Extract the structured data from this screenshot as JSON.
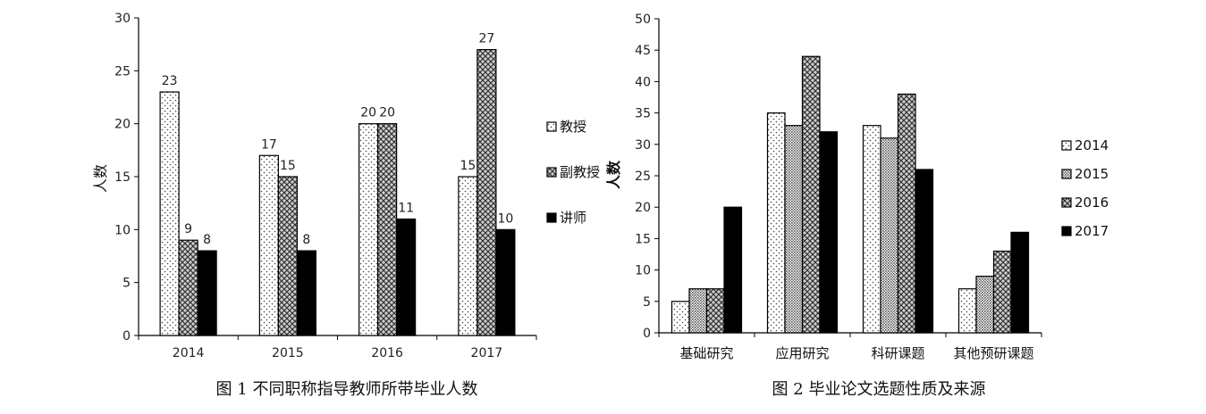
{
  "chart_data": [
    {
      "type": "bar",
      "caption": "图 1  不同职称指导教师所带毕业人数",
      "ylabel": "人数",
      "xlabel": "",
      "ylim": [
        0,
        30
      ],
      "yticks": [
        "0",
        "5",
        "10",
        "15",
        "20",
        "25",
        "30"
      ],
      "categories": [
        "2014",
        "2015",
        "2016",
        "2017"
      ],
      "series": [
        {
          "name": "教授",
          "values": [
            23,
            17,
            20,
            15
          ]
        },
        {
          "name": "副教授",
          "values": [
            9,
            15,
            20,
            27
          ]
        },
        {
          "name": "讲师",
          "values": [
            8,
            8,
            11,
            10
          ]
        }
      ],
      "data_labels": true,
      "legend_position": "right"
    },
    {
      "type": "bar",
      "caption": "图 2  毕业论文选题性质及来源",
      "ylabel": "人数",
      "xlabel": "",
      "ylim": [
        0,
        50
      ],
      "yticks": [
        "0",
        "5",
        "10",
        "15",
        "20",
        "25",
        "30",
        "35",
        "40",
        "45",
        "50"
      ],
      "categories": [
        "基础研究",
        "应用研究",
        "科研课题",
        "其他预研课题"
      ],
      "series": [
        {
          "name": "2014",
          "values": [
            5,
            35,
            33,
            7
          ]
        },
        {
          "name": "2015",
          "values": [
            7,
            33,
            31,
            9
          ]
        },
        {
          "name": "2016",
          "values": [
            7,
            44,
            38,
            13
          ]
        },
        {
          "name": "2017",
          "values": [
            20,
            32,
            26,
            16
          ]
        }
      ],
      "data_labels": false,
      "legend_position": "right"
    }
  ]
}
